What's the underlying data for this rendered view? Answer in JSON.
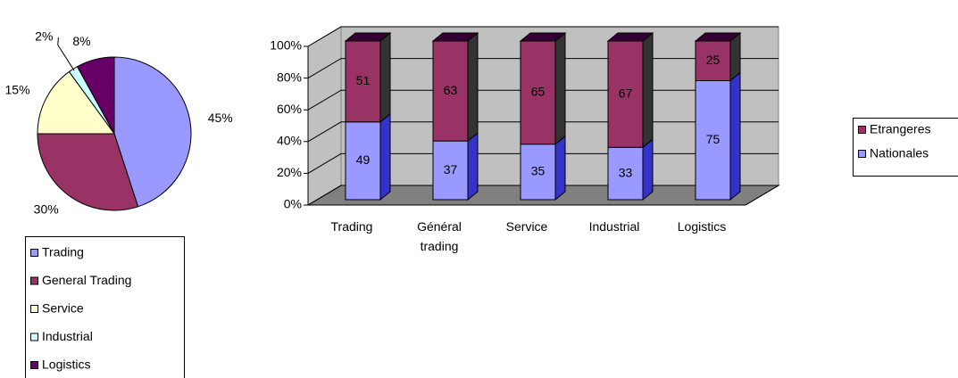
{
  "chart_data": [
    {
      "type": "pie",
      "categories": [
        "Trading",
        "General Trading",
        "Service",
        "Industrial",
        "Logistics"
      ],
      "values": [
        45,
        30,
        15,
        2,
        8
      ],
      "value_labels": [
        "45%",
        "30%",
        "15%",
        "2%",
        "8%"
      ],
      "colors": [
        "#9999ff",
        "#993366",
        "#ffffcc",
        "#ccffff",
        "#660066"
      ],
      "legend": "bottom"
    },
    {
      "type": "bar3d_stacked",
      "categories": [
        "Trading",
        "Général trading",
        "Service",
        "Industrial",
        "Logistics"
      ],
      "series": [
        {
          "name": "Nationales",
          "color": "#9999ff",
          "values": [
            49,
            37,
            35,
            33,
            75
          ]
        },
        {
          "name": "Etrangeres",
          "color": "#993366",
          "values": [
            51,
            63,
            65,
            67,
            25
          ]
        }
      ],
      "ylim": [
        0,
        100
      ],
      "yticks": [
        {
          "value": 0,
          "label": "0%"
        },
        {
          "value": 20,
          "label": "20%"
        },
        {
          "value": 40,
          "label": "40%"
        },
        {
          "value": 60,
          "label": "60%"
        },
        {
          "value": 80,
          "label": "80%"
        },
        {
          "value": 100,
          "label": "100%"
        }
      ],
      "grid": true,
      "legend": "right"
    }
  ]
}
